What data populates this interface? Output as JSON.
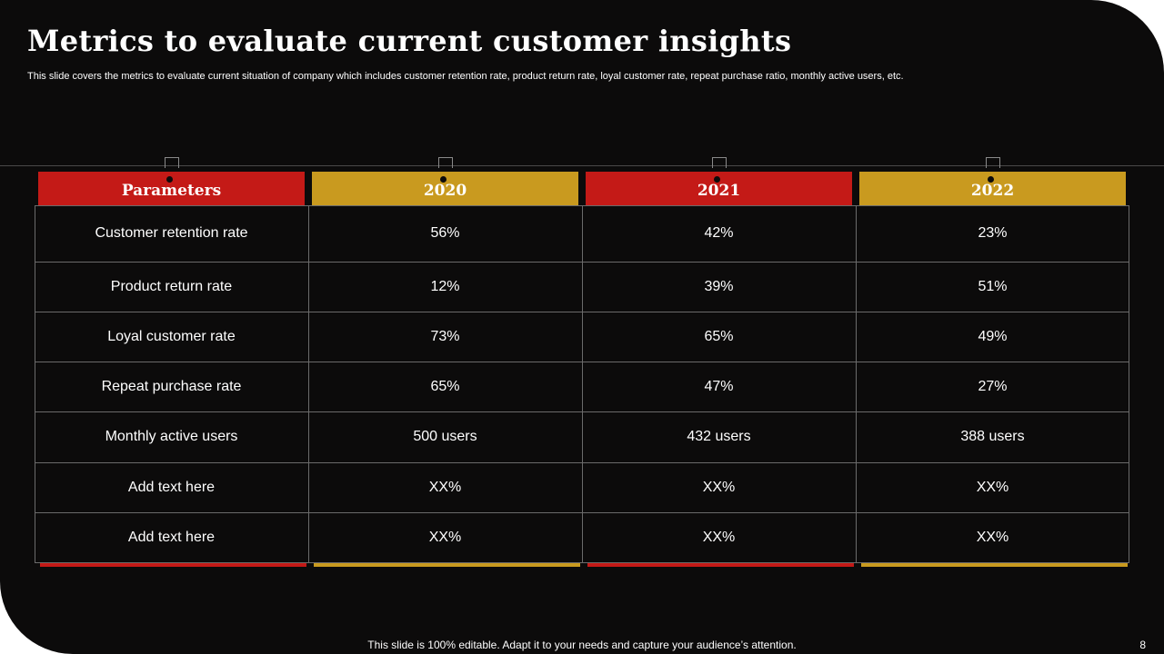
{
  "slide": {
    "title": "Metrics to evaluate current customer insights",
    "subtitle": "This slide covers the metrics to evaluate current situation of company which includes customer retention rate, product return rate, loyal customer rate, repeat purchase ratio, monthly active users, etc.",
    "footer": "This slide is 100% editable. Adapt it to your needs and capture your audience’s attention.",
    "page_number": "8"
  },
  "colors": {
    "red": "#c41a17",
    "gold": "#c99a1f",
    "background": "#0c0b0b"
  },
  "table": {
    "headers": [
      "Parameters",
      "2020",
      "2021",
      "2022"
    ],
    "rows": [
      [
        "Customer retention rate",
        "56%",
        "42%",
        "23%"
      ],
      [
        "Product return  rate",
        "12%",
        "39%",
        "51%"
      ],
      [
        "Loyal customer  rate",
        "73%",
        "65%",
        "49%"
      ],
      [
        "Repeat purchase  rate",
        "65%",
        "47%",
        "27%"
      ],
      [
        "Monthly  active users",
        "500 users",
        "432 users",
        "388 users"
      ],
      [
        "Add text here",
        "XX%",
        "XX%",
        "XX%"
      ],
      [
        "Add text here",
        "XX%",
        "XX%",
        "XX%"
      ]
    ]
  }
}
